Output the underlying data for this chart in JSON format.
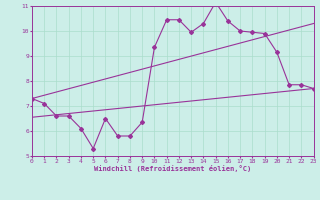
{
  "title": "",
  "xlabel": "Windchill (Refroidissement éolien,°C)",
  "bg_color": "#cceee8",
  "line_color": "#993399",
  "grid_color": "#aaddcc",
  "x_min": 0,
  "x_max": 23,
  "y_min": 5,
  "y_max": 11,
  "yticks": [
    5,
    6,
    7,
    8,
    9,
    10,
    11
  ],
  "xticks": [
    0,
    1,
    2,
    3,
    4,
    5,
    6,
    7,
    8,
    9,
    10,
    11,
    12,
    13,
    14,
    15,
    16,
    17,
    18,
    19,
    20,
    21,
    22,
    23
  ],
  "line1_x": [
    0,
    1,
    2,
    3,
    4,
    5,
    6,
    7,
    8,
    9,
    10,
    11,
    12,
    13,
    14,
    15,
    16,
    17,
    18,
    19,
    20,
    21,
    22,
    23
  ],
  "line1_y": [
    7.3,
    7.1,
    6.6,
    6.6,
    6.1,
    5.3,
    6.5,
    5.8,
    5.8,
    6.35,
    9.35,
    10.45,
    10.45,
    9.95,
    10.3,
    11.15,
    10.4,
    10.0,
    9.95,
    9.9,
    9.15,
    7.85,
    7.85,
    7.7
  ],
  "line2_x": [
    0,
    23
  ],
  "line2_y": [
    7.3,
    10.3
  ],
  "line3_x": [
    0,
    23
  ],
  "line3_y": [
    6.55,
    7.7
  ]
}
